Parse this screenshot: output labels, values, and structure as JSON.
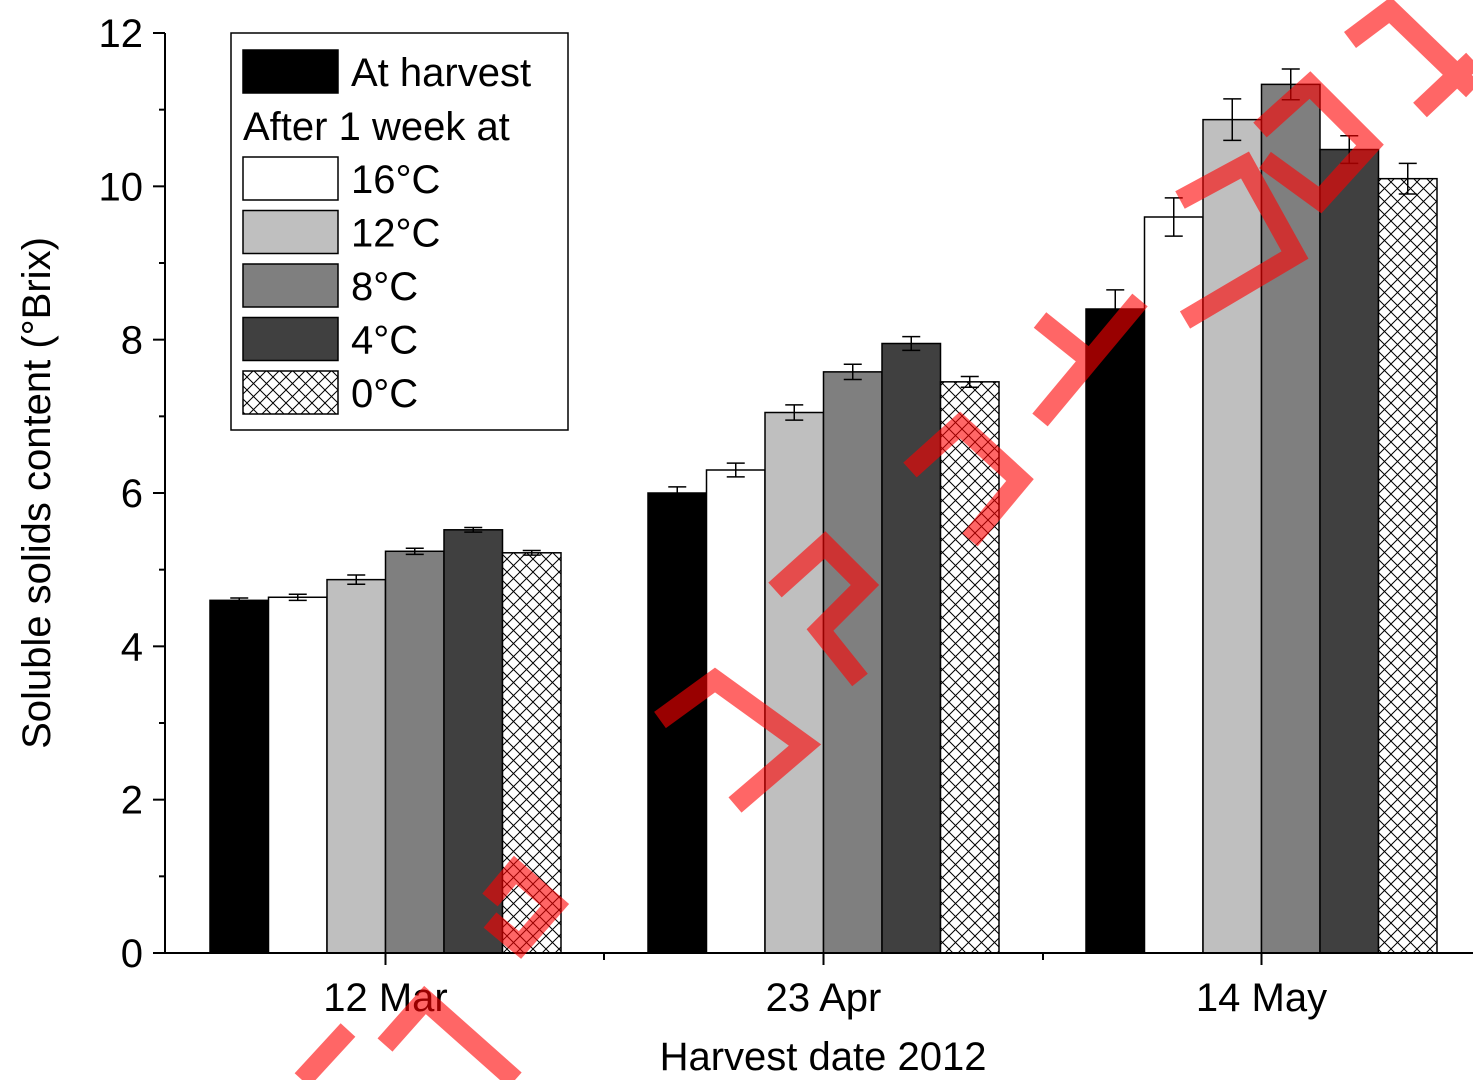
{
  "chart_data": {
    "type": "bar",
    "xlabel": "Harvest date 2012",
    "ylabel": "Soluble solids content (°Brix)",
    "ylim": [
      0,
      12
    ],
    "yticks": [
      "0",
      "2",
      "4",
      "6",
      "8",
      "10",
      "12"
    ],
    "categories": [
      "12 Mar",
      "23 Apr",
      "14 May"
    ],
    "series": [
      {
        "name": "At harvest",
        "fill": "#000000",
        "pattern": "solid",
        "values": [
          4.6,
          6.0,
          8.4
        ],
        "errors": [
          0.03,
          0.08,
          0.25
        ]
      },
      {
        "name": "16°C",
        "fill": "#ffffff",
        "pattern": "solid",
        "values": [
          4.64,
          6.3,
          9.6
        ],
        "errors": [
          0.04,
          0.09,
          0.25
        ]
      },
      {
        "name": "12°C",
        "fill": "#bfbfbf",
        "pattern": "solid",
        "values": [
          4.87,
          7.05,
          10.87
        ],
        "errors": [
          0.06,
          0.1,
          0.27
        ]
      },
      {
        "name": "8°C",
        "fill": "#7f7f7f",
        "pattern": "solid",
        "values": [
          5.24,
          7.58,
          11.33
        ],
        "errors": [
          0.04,
          0.1,
          0.2
        ]
      },
      {
        "name": "4°C",
        "fill": "#404040",
        "pattern": "solid",
        "values": [
          5.52,
          7.95,
          10.48
        ],
        "errors": [
          0.03,
          0.09,
          0.18
        ]
      },
      {
        "name": "0°C",
        "fill": "#ffffff",
        "pattern": "crosshatch",
        "values": [
          5.22,
          7.45,
          10.1
        ],
        "errors": [
          0.03,
          0.07,
          0.2
        ]
      }
    ],
    "legend": {
      "placement": "top-left",
      "subheading": "After 1 week at"
    },
    "grid": false
  },
  "watermark": {
    "text": "ΤΡΟΖ ΡΟΥΖΟΣ",
    "color": "#ff0000"
  }
}
